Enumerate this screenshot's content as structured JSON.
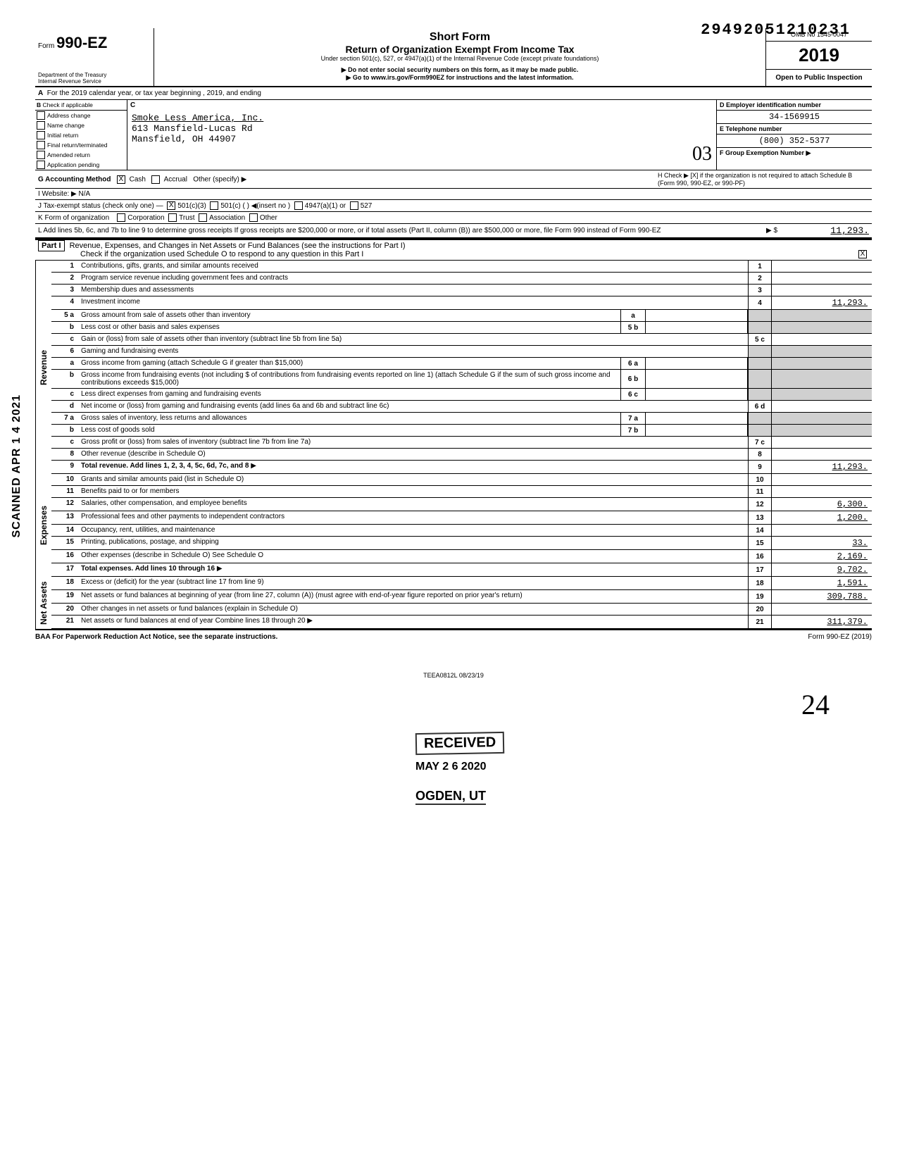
{
  "top_number": "29492051210231",
  "side_text": "SCANNED APR 1 4 2021",
  "form": {
    "prefix": "Form",
    "number": "990-EZ",
    "dept": "Department of the Treasury\nInternal Revenue Service"
  },
  "title": {
    "line1": "Short Form",
    "line2": "Return of Organization Exempt From Income Tax",
    "line3": "Under section 501(c), 527, or 4947(a)(1) of the Internal Revenue Code (except private foundations)",
    "line4": "▶ Do not enter social security numbers on this form, as it may be made public.",
    "line5": "▶ Go to www.irs.gov/Form990EZ for instructions and the latest information."
  },
  "omb": {
    "number": "OMB No 1545-0047",
    "year": "2019",
    "open": "Open to Public Inspection"
  },
  "line_a": "For the 2019 calendar year, or tax year beginning                                   , 2019, and ending",
  "section_b": {
    "header": "Check if applicable",
    "items": [
      "Address change",
      "Name change",
      "Initial return",
      "Final return/terminated",
      "Amended return",
      "Application pending"
    ]
  },
  "section_c": {
    "label": "C",
    "name": "Smoke Less America, Inc.",
    "addr1": "613 Mansfield-Lucas Rd",
    "addr2": "Mansfield, OH 44907"
  },
  "section_d": {
    "ein_label": "D  Employer identification number",
    "ein": "34-1569915",
    "tel_label": "E  Telephone number",
    "tel": "(800) 352-5377",
    "grp_label": "F  Group Exemption Number ▶"
  },
  "line_g": {
    "label": "G   Accounting Method",
    "cash": "Cash",
    "accrual": "Accrual",
    "other": "Other (specify) ▶"
  },
  "line_h": "H  Check ▶ [X] if the organization is not required to attach Schedule B (Form 990, 990-EZ, or 990-PF)",
  "line_i": "I    Website: ▶   N/A",
  "line_j": "J    Tax-exempt status (check only one) —",
  "line_j_opts": [
    "501(c)(3)",
    "501(c) (      ) ◀(insert no )",
    "4947(a)(1) or",
    "527"
  ],
  "line_k": "K   Form of organization",
  "line_k_opts": [
    "Corporation",
    "Trust",
    "Association",
    "Other"
  ],
  "line_l": {
    "text": "L    Add lines 5b, 6c, and 7b to line 9 to determine gross receipts  If gross receipts are $200,000 or more, or if total assets (Part II, column (B)) are $500,000 or more, file Form 990 instead of Form 990-EZ",
    "arrow": "▶ $",
    "value": "11,293."
  },
  "part1": {
    "header": "Revenue, Expenses, and Changes in Net Assets or Fund Balances (see the instructions for Part I)",
    "sub": "Check if the organization used Schedule O to respond to any question in this Part I",
    "checked": "X"
  },
  "sections": {
    "revenue": "Revenue",
    "expenses": "Expenses",
    "netassets": "Net Assets"
  },
  "lines": [
    {
      "n": "1",
      "d": "Contributions, gifts, grants, and similar amounts received",
      "rn": "1",
      "rv": ""
    },
    {
      "n": "2",
      "d": "Program service revenue including government fees and contracts",
      "rn": "2",
      "rv": ""
    },
    {
      "n": "3",
      "d": "Membership dues and assessments",
      "rn": "3",
      "rv": ""
    },
    {
      "n": "4",
      "d": "Investment income",
      "rn": "4",
      "rv": "11,293."
    },
    {
      "n": "5 a",
      "d": "Gross amount from sale of assets other than inventory",
      "mn": "a",
      "rn": "",
      "rv": "",
      "shaded": true
    },
    {
      "n": "b",
      "d": "Less  cost or other basis and sales expenses",
      "mn": "5 b",
      "rn": "",
      "rv": "",
      "shaded": true
    },
    {
      "n": "c",
      "d": "Gain or (loss) from sale of assets other than inventory (subtract line 5b from line 5a)",
      "rn": "5 c",
      "rv": ""
    },
    {
      "n": "6",
      "d": "Gaming and fundraising events",
      "rn": "",
      "rv": "",
      "shaded": true,
      "noborder": true
    },
    {
      "n": "a",
      "d": "Gross income from gaming (attach Schedule G if greater than $15,000)",
      "mn": "6 a",
      "rn": "",
      "rv": "",
      "shaded": true
    },
    {
      "n": "b",
      "d": "Gross income from fundraising events (not including $                                    of contributions from fundraising events reported on line 1) (attach Schedule G if the sum of such gross income and contributions exceeds $15,000)",
      "mn": "6 b",
      "rn": "",
      "rv": "",
      "shaded": true
    },
    {
      "n": "c",
      "d": "Less  direct expenses from gaming and fundraising events",
      "mn": "6 c",
      "rn": "",
      "rv": "",
      "shaded": true
    },
    {
      "n": "d",
      "d": "Net income or (loss) from gaming and fundraising events (add lines 6a and 6b and subtract line 6c)",
      "rn": "6 d",
      "rv": ""
    },
    {
      "n": "7 a",
      "d": "Gross sales of inventory, less returns and allowances",
      "mn": "7 a",
      "rn": "",
      "rv": "",
      "shaded": true
    },
    {
      "n": "b",
      "d": "Less  cost of goods sold",
      "mn": "7 b",
      "rn": "",
      "rv": "",
      "shaded": true
    },
    {
      "n": "c",
      "d": "Gross profit or (loss) from sales of inventory (subtract line 7b from line 7a)",
      "rn": "7 c",
      "rv": ""
    },
    {
      "n": "8",
      "d": "Other revenue (describe in Schedule O)",
      "rn": "8",
      "rv": ""
    },
    {
      "n": "9",
      "d": "Total revenue. Add lines 1, 2, 3, 4, 5c, 6d, 7c, and 8",
      "rn": "9",
      "rv": "11,293.",
      "bold": true,
      "arrow": true
    }
  ],
  "exp_lines": [
    {
      "n": "10",
      "d": "Grants and similar amounts paid (list in Schedule O)",
      "rn": "10",
      "rv": ""
    },
    {
      "n": "11",
      "d": "Benefits paid to or for members",
      "rn": "11",
      "rv": ""
    },
    {
      "n": "12",
      "d": "Salaries, other compensation, and employee benefits",
      "rn": "12",
      "rv": "6,300."
    },
    {
      "n": "13",
      "d": "Professional fees and other payments to independent contractors",
      "rn": "13",
      "rv": "1,200."
    },
    {
      "n": "14",
      "d": "Occupancy, rent, utilities, and maintenance",
      "rn": "14",
      "rv": ""
    },
    {
      "n": "15",
      "d": "Printing, publications, postage, and shipping",
      "rn": "15",
      "rv": "33."
    },
    {
      "n": "16",
      "d": "Other expenses (describe in Schedule O)                                     See Schedule O",
      "rn": "16",
      "rv": "2,169."
    },
    {
      "n": "17",
      "d": "Total expenses. Add lines 10 through 16",
      "rn": "17",
      "rv": "9,702.",
      "bold": true,
      "arrow": true
    }
  ],
  "na_lines": [
    {
      "n": "18",
      "d": "Excess or (deficit) for the year (subtract line 17 from line 9)",
      "rn": "18",
      "rv": "1,591."
    },
    {
      "n": "19",
      "d": "Net assets or fund balances at beginning of year (from line 27, column (A)) (must agree with end-of-year figure reported on prior year's return)",
      "rn": "19",
      "rv": "309,788."
    },
    {
      "n": "20",
      "d": "Other changes in net assets or fund balances (explain in Schedule O)",
      "rn": "20",
      "rv": ""
    },
    {
      "n": "21",
      "d": "Net assets or fund balances at end of year  Combine lines 18 through 20",
      "rn": "21",
      "rv": "311,379.",
      "arrow": true
    }
  ],
  "footer": {
    "left": "BAA  For Paperwork Reduction Act Notice, see the separate instructions.",
    "right": "Form 990-EZ (2019)"
  },
  "teea": "TEEA0812L   08/23/19",
  "stamp": {
    "received": "RECEIVED",
    "date": "MAY 2 6 2020",
    "loc": "OGDEN, UT"
  },
  "handwritten": "24"
}
